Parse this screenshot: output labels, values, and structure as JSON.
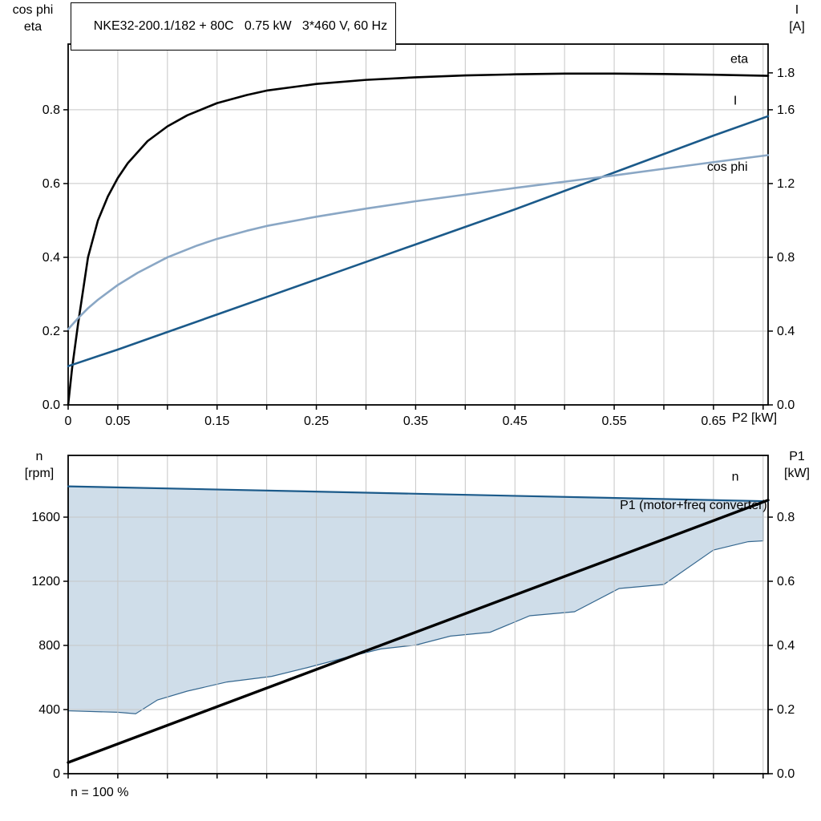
{
  "header": {
    "title": "NKE32-200.1/182 + 80C   0.75 kW   3*460 V, 60 Hz"
  },
  "colors": {
    "eta": "#000000",
    "current": "#1b5a8a",
    "cos_phi": "#8aa7c5",
    "speed": "#1b5a8a",
    "power": "#000000",
    "grid": "#c6c6c6",
    "frame": "#000000",
    "text": "#000000",
    "envelope_fill": "#cfdde9",
    "envelope_stroke": "#35678f"
  },
  "chart_data": [
    {
      "type": "line",
      "x_axis": {
        "label": "P2 [kW]",
        "range": [
          0,
          0.705
        ],
        "grid_step": 0.05,
        "label_ticks": [
          {
            "v": 0,
            "t": "0"
          },
          {
            "v": 0.05,
            "t": "0.05"
          },
          {
            "v": 0.15,
            "t": "0.15"
          },
          {
            "v": 0.25,
            "t": "0.25"
          },
          {
            "v": 0.35,
            "t": "0.35"
          },
          {
            "v": 0.45,
            "t": "0.45"
          },
          {
            "v": 0.55,
            "t": "0.55"
          },
          {
            "v": 0.65,
            "t": "0.65"
          }
        ]
      },
      "left_axis": {
        "title_lines": [
          "cos phi",
          "eta"
        ],
        "range": [
          0,
          0.978
        ],
        "ticks": [
          {
            "v": 0,
            "t": "0.0"
          },
          {
            "v": 0.2,
            "t": "0.2"
          },
          {
            "v": 0.4,
            "t": "0.4"
          },
          {
            "v": 0.6,
            "t": "0.6"
          },
          {
            "v": 0.8,
            "t": "0.8"
          }
        ]
      },
      "right_axis": {
        "title_lines": [
          "I",
          "[A]"
        ],
        "range": [
          0,
          1.956
        ],
        "ticks": [
          {
            "v": 0,
            "t": "0.0"
          },
          {
            "v": 0.4,
            "t": "0.4"
          },
          {
            "v": 0.8,
            "t": "0.8"
          },
          {
            "v": 1.2,
            "t": "1.2"
          },
          {
            "v": 1.6,
            "t": "1.6"
          },
          {
            "v": 1.8,
            "t": "1.8"
          }
        ]
      },
      "series": [
        {
          "name": "eta",
          "label": "eta",
          "axis": "left",
          "color": "eta",
          "width": 2.6,
          "anchor": "middle",
          "label_xy": [
            0.676,
            0.938
          ],
          "points": [
            [
              0,
              0
            ],
            [
              0.004,
              0.1
            ],
            [
              0.01,
              0.22
            ],
            [
              0.02,
              0.4
            ],
            [
              0.03,
              0.5
            ],
            [
              0.04,
              0.565
            ],
            [
              0.05,
              0.615
            ],
            [
              0.06,
              0.655
            ],
            [
              0.08,
              0.715
            ],
            [
              0.1,
              0.755
            ],
            [
              0.12,
              0.785
            ],
            [
              0.15,
              0.818
            ],
            [
              0.18,
              0.84
            ],
            [
              0.2,
              0.852
            ],
            [
              0.25,
              0.87
            ],
            [
              0.3,
              0.881
            ],
            [
              0.35,
              0.888
            ],
            [
              0.4,
              0.893
            ],
            [
              0.45,
              0.896
            ],
            [
              0.5,
              0.898
            ],
            [
              0.55,
              0.898
            ],
            [
              0.6,
              0.897
            ],
            [
              0.65,
              0.895
            ],
            [
              0.705,
              0.892
            ]
          ]
        },
        {
          "name": "I",
          "label": "I",
          "axis": "right",
          "color": "current",
          "width": 2.6,
          "anchor": "middle",
          "label_xy": [
            0.672,
            1.65
          ],
          "points": [
            [
              0,
              0.21
            ],
            [
              0.05,
              0.3
            ],
            [
              0.1,
              0.395
            ],
            [
              0.15,
              0.49
            ],
            [
              0.2,
              0.585
            ],
            [
              0.25,
              0.68
            ],
            [
              0.3,
              0.775
            ],
            [
              0.35,
              0.87
            ],
            [
              0.4,
              0.965
            ],
            [
              0.45,
              1.06
            ],
            [
              0.5,
              1.16
            ],
            [
              0.55,
              1.26
            ],
            [
              0.6,
              1.36
            ],
            [
              0.65,
              1.46
            ],
            [
              0.705,
              1.565
            ]
          ]
        },
        {
          "name": "cos phi",
          "label": "cos phi",
          "axis": "left",
          "color": "cos_phi",
          "width": 2.6,
          "anchor": "middle",
          "label_xy": [
            0.664,
            0.645
          ],
          "points": [
            [
              0,
              0.205
            ],
            [
              0.01,
              0.235
            ],
            [
              0.02,
              0.262
            ],
            [
              0.03,
              0.285
            ],
            [
              0.05,
              0.325
            ],
            [
              0.07,
              0.358
            ],
            [
              0.1,
              0.4
            ],
            [
              0.13,
              0.432
            ],
            [
              0.15,
              0.45
            ],
            [
              0.18,
              0.472
            ],
            [
              0.2,
              0.485
            ],
            [
              0.25,
              0.51
            ],
            [
              0.3,
              0.532
            ],
            [
              0.35,
              0.552
            ],
            [
              0.4,
              0.57
            ],
            [
              0.45,
              0.588
            ],
            [
              0.5,
              0.605
            ],
            [
              0.55,
              0.622
            ],
            [
              0.6,
              0.64
            ],
            [
              0.65,
              0.658
            ],
            [
              0.705,
              0.677
            ]
          ]
        }
      ]
    },
    {
      "type": "line",
      "annotation": "n = 100 %",
      "x_axis": {
        "label": "",
        "range": [
          0,
          0.705
        ],
        "grid_step": 0.05,
        "label_ticks": []
      },
      "left_axis": {
        "title_lines": [
          "n",
          "[rpm]"
        ],
        "range": [
          0,
          1985
        ],
        "ticks": [
          {
            "v": 0,
            "t": "0"
          },
          {
            "v": 400,
            "t": "400"
          },
          {
            "v": 800,
            "t": "800"
          },
          {
            "v": 1200,
            "t": "1200"
          },
          {
            "v": 1600,
            "t": "1600"
          }
        ]
      },
      "right_axis": {
        "title_lines": [
          "P1",
          "[kW]"
        ],
        "range": [
          0,
          0.9925
        ],
        "ticks": [
          {
            "v": 0,
            "t": "0.0"
          },
          {
            "v": 0.2,
            "t": "0.2"
          },
          {
            "v": 0.4,
            "t": "0.4"
          },
          {
            "v": 0.6,
            "t": "0.6"
          },
          {
            "v": 0.8,
            "t": "0.8"
          }
        ]
      },
      "envelope": {
        "top": [
          [
            0,
            1792
          ],
          [
            0.35,
            1746
          ],
          [
            0.7,
            1700
          ]
        ],
        "bottom": [
          [
            0,
            392
          ],
          [
            0.05,
            383
          ],
          [
            0.068,
            374
          ],
          [
            0.09,
            460
          ],
          [
            0.12,
            515
          ],
          [
            0.16,
            572
          ],
          [
            0.205,
            607
          ],
          [
            0.24,
            660
          ],
          [
            0.28,
            725
          ],
          [
            0.315,
            778
          ],
          [
            0.35,
            802
          ],
          [
            0.385,
            858
          ],
          [
            0.425,
            882
          ],
          [
            0.465,
            985
          ],
          [
            0.51,
            1010
          ],
          [
            0.555,
            1155
          ],
          [
            0.6,
            1180
          ],
          [
            0.65,
            1395
          ],
          [
            0.685,
            1447
          ],
          [
            0.7,
            1452
          ]
        ]
      },
      "series": [
        {
          "name": "n",
          "label": "n",
          "axis": "left",
          "color": "speed",
          "width": 2.2,
          "anchor": "middle",
          "label_xy": [
            0.672,
            1852
          ],
          "points": [
            [
              0,
              1792
            ],
            [
              0.35,
              1746
            ],
            [
              0.705,
              1699
            ]
          ]
        },
        {
          "name": "P1 (motor+freq converter)",
          "label": "P1 (motor+freq converter)",
          "axis": "right",
          "color": "power",
          "width": 3.4,
          "anchor": "end",
          "label_xy": [
            0.704,
            0.838
          ],
          "points": [
            [
              0,
              0.035
            ],
            [
              0.705,
              0.853
            ]
          ]
        }
      ]
    }
  ]
}
